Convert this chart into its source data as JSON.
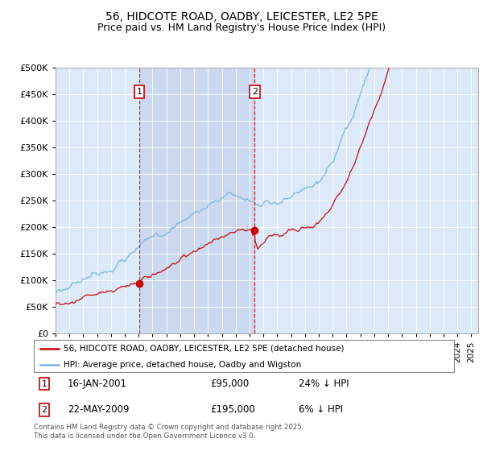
{
  "title": "56, HIDCOTE ROAD, OADBY, LEICESTER, LE2 5PE",
  "subtitle": "Price paid vs. HM Land Registry's House Price Index (HPI)",
  "ylim": [
    0,
    500000
  ],
  "yticks": [
    0,
    50000,
    100000,
    150000,
    200000,
    250000,
    300000,
    350000,
    400000,
    450000,
    500000
  ],
  "plot_bg": "#dce9f8",
  "hpi_color": "#7ab3d9",
  "price_color": "#cc0000",
  "shade_color": "#c8d8f0",
  "legend_entry1": "56, HIDCOTE ROAD, OADBY, LEICESTER, LE2 5PE (detached house)",
  "legend_entry2": "HPI: Average price, detached house, Oadby and Wigston",
  "footer": "Contains HM Land Registry data © Crown copyright and database right 2025.\nThis data is licensed under the Open Government Licence v3.0.",
  "title_fontsize": 10,
  "subtitle_fontsize": 9,
  "start_year": 1995,
  "end_year": 2025,
  "sale1_year": 2001.04,
  "sale1_price": 95000,
  "sale2_year": 2009.37,
  "sale2_price": 195000
}
